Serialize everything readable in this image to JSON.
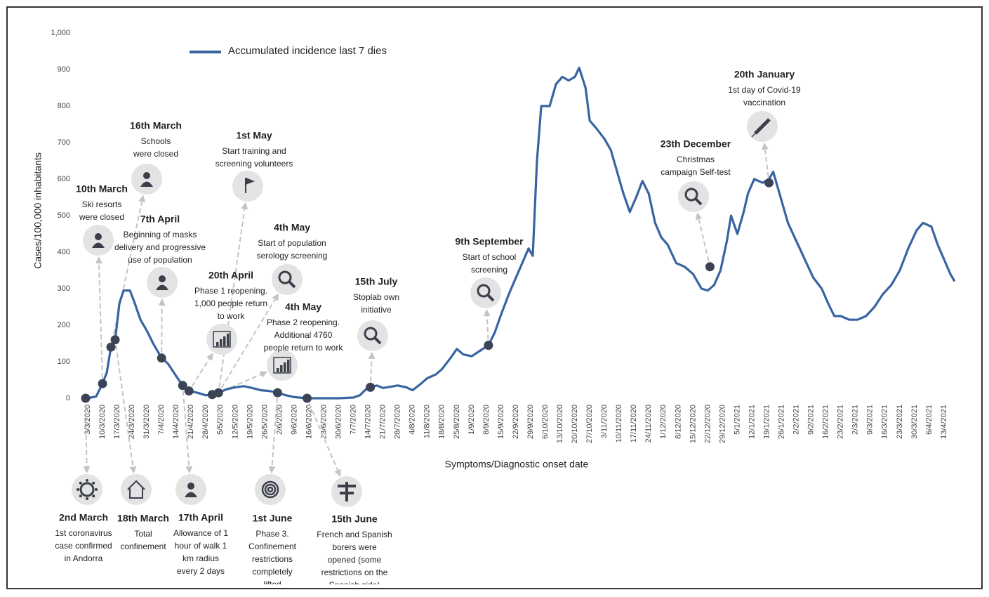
{
  "chart_data": {
    "type": "line",
    "y_label": "Cases/100,000 inhabitants",
    "x_label": "Symptoms/Diagnostic onset date",
    "ylim": [
      0,
      1000
    ],
    "yticks": [
      0,
      100,
      200,
      300,
      400,
      500,
      600,
      700,
      800,
      900,
      {
        "value": 1000,
        "label": "1,000"
      }
    ],
    "xlim": [
      "28/2/2020",
      "20/4/2021"
    ],
    "xticks": [
      "3/3/2020",
      "10/3/2020",
      "17/3/2020",
      "24/3/2020",
      "31/3/2020",
      "7/4/2020",
      "14/4/2020",
      "21/4/2020",
      "28/4/2020",
      "5/5/2020",
      "12/5/2020",
      "19/5/2020",
      "26/5/2020",
      "2/6/2020",
      "9/6/2020",
      "16/6/2020",
      "23/6/2020",
      "30/6/2020",
      "7/7/2020",
      "14/7/2020",
      "21/7/2020",
      "28/7/2020",
      "4/8/2020",
      "11/8/2020",
      "18/8/2020",
      "25/8/2020",
      "1/9/2020",
      "8/9/2020",
      "15/9/2020",
      "22/9/2020",
      "29/9/2020",
      "6/10/2020",
      "13/10/2020",
      "20/10/2020",
      "27/10/2020",
      "3/11/2020",
      "10/11/2020",
      "17/11/2020",
      "24/11/2020",
      "1/12/2020",
      "8/12/2020",
      "15/12/2020",
      "22/12/2020",
      "29/12/2020",
      "5/1/2021",
      "12/1/2021",
      "19/1/2021",
      "26/1/2021",
      "2/2/2021",
      "9/2/2021",
      "16/2/2021",
      "23/2/2021",
      "2/3/2021",
      "9/3/2021",
      "16/3/2021",
      "23/3/2021",
      "30/3/2021",
      "6/4/2021",
      "13/4/2021"
    ],
    "grid": false,
    "series": [
      {
        "name": "Accumulated incidence last 7 dies",
        "color": "#3864a2",
        "x": [
          "3/3/2020",
          "7/3/2020",
          "10/3/2020",
          "12/3/2020",
          "14/3/2020",
          "16/3/2020",
          "18/3/2020",
          "20/3/2020",
          "23/3/2020",
          "25/3/2020",
          "28/3/2020",
          "31/3/2020",
          "3/4/2020",
          "7/4/2020",
          "10/4/2020",
          "14/4/2020",
          "17/4/2020",
          "20/4/2020",
          "24/4/2020",
          "28/4/2020",
          "1/5/2020",
          "4/5/2020",
          "8/5/2020",
          "12/5/2020",
          "16/5/2020",
          "20/5/2020",
          "24/5/2020",
          "28/5/2020",
          "1/6/2020",
          "5/6/2020",
          "9/6/2020",
          "13/6/2020",
          "16/6/2020",
          "23/6/2020",
          "30/6/2020",
          "7/7/2020",
          "10/7/2020",
          "13/7/2020",
          "15/7/2020",
          "18/7/2020",
          "21/7/2020",
          "25/7/2020",
          "28/7/2020",
          "1/8/2020",
          "4/8/2020",
          "8/8/2020",
          "11/8/2020",
          "15/8/2020",
          "18/8/2020",
          "22/8/2020",
          "25/8/2020",
          "28/8/2020",
          "1/9/2020",
          "5/9/2020",
          "9/9/2020",
          "12/9/2020",
          "15/9/2020",
          "19/9/2020",
          "22/9/2020",
          "25/9/2020",
          "28/9/2020",
          "30/9/2020",
          "2/10/2020",
          "4/10/2020",
          "8/10/2020",
          "11/10/2020",
          "14/10/2020",
          "17/10/2020",
          "20/10/2020",
          "22/10/2020",
          "25/10/2020",
          "27/10/2020",
          "30/10/2020",
          "3/11/2020",
          "6/11/2020",
          "9/11/2020",
          "12/11/2020",
          "15/11/2020",
          "18/11/2020",
          "21/11/2020",
          "24/11/2020",
          "27/11/2020",
          "30/11/2020",
          "3/12/2020",
          "7/12/2020",
          "11/12/2020",
          "15/12/2020",
          "19/12/2020",
          "22/12/2020",
          "25/12/2020",
          "28/12/2020",
          "31/12/2020",
          "2/1/2021",
          "5/1/2021",
          "8/1/2021",
          "10/1/2021",
          "13/1/2021",
          "17/1/2021",
          "20/1/2021",
          "22/1/2021",
          "25/1/2021",
          "29/1/2021",
          "2/2/2021",
          "6/2/2021",
          "10/2/2021",
          "14/2/2021",
          "17/2/2021",
          "20/2/2021",
          "23/2/2021",
          "27/2/2021",
          "3/3/2021",
          "7/3/2021",
          "11/3/2021",
          "15/3/2021",
          "19/3/2021",
          "23/3/2021",
          "27/3/2021",
          "31/3/2021",
          "3/4/2021",
          "7/4/2021",
          "10/4/2021",
          "13/4/2021",
          "16/4/2021",
          "18/4/2021"
        ],
        "values": [
          0,
          5,
          40,
          70,
          140,
          160,
          260,
          295,
          295,
          265,
          215,
          185,
          150,
          110,
          95,
          60,
          35,
          20,
          15,
          8,
          10,
          15,
          25,
          30,
          33,
          28,
          22,
          20,
          15,
          8,
          3,
          1,
          0,
          0,
          0,
          2,
          8,
          25,
          30,
          35,
          28,
          32,
          35,
          30,
          22,
          40,
          55,
          65,
          80,
          110,
          135,
          120,
          115,
          130,
          145,
          180,
          230,
          290,
          330,
          370,
          410,
          390,
          650,
          800,
          800,
          860,
          880,
          870,
          880,
          905,
          850,
          760,
          740,
          710,
          680,
          620,
          560,
          510,
          550,
          595,
          560,
          480,
          440,
          420,
          370,
          360,
          340,
          300,
          295,
          310,
          350,
          430,
          500,
          450,
          510,
          560,
          600,
          590,
          600,
          620,
          560,
          480,
          430,
          380,
          330,
          300,
          260,
          225,
          225,
          215,
          215,
          225,
          250,
          285,
          310,
          350,
          410,
          460,
          480,
          470,
          420,
          380,
          340,
          320
        ]
      }
    ],
    "markers": {
      "x": [
        "2/3/2020",
        "10/3/2020",
        "14/3/2020",
        "16/3/2020",
        "7/4/2020",
        "17/4/2020",
        "20/4/2020",
        "1/5/2020",
        "4/5/2020",
        "1/6/2020",
        "15/6/2020",
        "15/7/2020",
        "9/9/2020",
        "23/12/2020",
        "20/1/2021"
      ],
      "values": [
        0,
        40,
        140,
        160,
        110,
        35,
        20,
        10,
        15,
        15,
        0,
        30,
        145,
        360,
        590
      ]
    },
    "annotations": [
      {
        "title": "10th March",
        "lines": [
          "Ski resorts",
          "were closed"
        ]
      },
      {
        "title": "16th March",
        "lines": [
          "Schools",
          "were closed"
        ]
      },
      {
        "title": "7th April",
        "lines": [
          "Beginning of masks",
          "delivery and progressive",
          "use of population"
        ]
      },
      {
        "title": "1st May",
        "lines": [
          "Start training and",
          "screening volunteers"
        ]
      },
      {
        "title": "4th May",
        "lines": [
          "Start of population",
          "serology screening"
        ]
      },
      {
        "title": "20th April",
        "lines": [
          "Phase 1 reopening.",
          "1,000 people return",
          "to work"
        ]
      },
      {
        "title": "4th May",
        "lines": [
          "Phase 2 reopening.",
          "Additional 4760",
          "people return to work"
        ]
      },
      {
        "title": "15th July",
        "lines": [
          "Stoplab own",
          "initiative"
        ]
      },
      {
        "title": "9th September",
        "lines": [
          "Start of school",
          "screening"
        ]
      },
      {
        "title": "23th December",
        "lines": [
          "Christmas",
          "campaign Self-test"
        ]
      },
      {
        "title": "20th January",
        "lines": [
          "1st day of Covid-19",
          "vaccination"
        ]
      },
      {
        "title": "2nd March",
        "lines": [
          "1st coronavirus",
          "case confirmed",
          "in Andorra"
        ]
      },
      {
        "title": "18th March",
        "lines": [
          "Total",
          "confinement"
        ]
      },
      {
        "title": "17th April",
        "lines": [
          "Allowance of 1",
          "hour of walk 1",
          "km radius",
          "every 2 days"
        ]
      },
      {
        "title": "1st June",
        "lines": [
          "Phase 3.",
          "Confinement",
          "restrictions",
          "completely",
          "lifted"
        ]
      },
      {
        "title": "15th June",
        "lines": [
          "French and Spanish",
          "borers were",
          "opened (some",
          "restrictions on the",
          "Spanish side)"
        ]
      }
    ]
  }
}
